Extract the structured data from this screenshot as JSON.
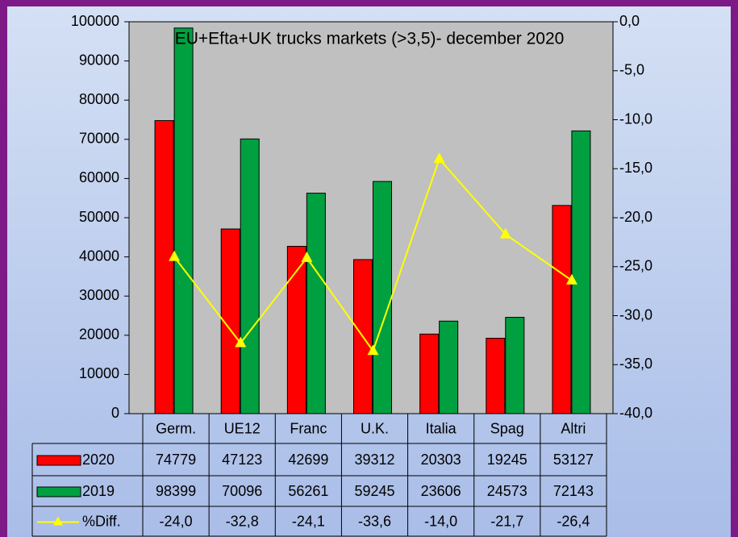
{
  "chart_data": {
    "type": "bar",
    "title": "EU+Efta+UK trucks markets (>3,5)- december 2020",
    "categories": [
      "Germ.",
      "UE12",
      "Franc",
      "U.K.",
      "Italia",
      "Spag",
      "Altri"
    ],
    "series": [
      {
        "name": "2020",
        "color": "#ff0000",
        "values": [
          74779,
          47123,
          42699,
          39312,
          20303,
          19245,
          53127
        ]
      },
      {
        "name": "2019",
        "color": "#00a040",
        "values": [
          98399,
          70096,
          56261,
          59245,
          23606,
          24573,
          72143
        ]
      },
      {
        "name": "%Diff.",
        "color": "#ffff00",
        "type": "line",
        "axis": "y2",
        "values": [
          -24.0,
          -32.8,
          -24.1,
          -33.6,
          -14.0,
          -21.7,
          -26.4
        ],
        "value_labels": [
          "-24,0",
          "-32,8",
          "-24,1",
          "-33,6",
          "-14,0",
          "-21,7",
          "-26,4"
        ]
      }
    ],
    "ylim": [
      0,
      100000
    ],
    "yticks": [
      0,
      10000,
      20000,
      30000,
      40000,
      50000,
      60000,
      70000,
      80000,
      90000,
      100000
    ],
    "y2lim": [
      -40,
      0
    ],
    "y2ticks": [
      {
        "value": 0,
        "label": "0,0"
      },
      {
        "value": -5,
        "label": "-5,0"
      },
      {
        "value": -10,
        "label": "-10,0"
      },
      {
        "value": -15,
        "label": "-15,0"
      },
      {
        "value": -20,
        "label": "-20,0"
      },
      {
        "value": -25,
        "label": "-25,0"
      },
      {
        "value": -30,
        "label": "-30,0"
      },
      {
        "value": -35,
        "label": "-35,0"
      },
      {
        "value": -40,
        "label": "-40,0"
      }
    ],
    "grid": false,
    "data_table": true
  }
}
